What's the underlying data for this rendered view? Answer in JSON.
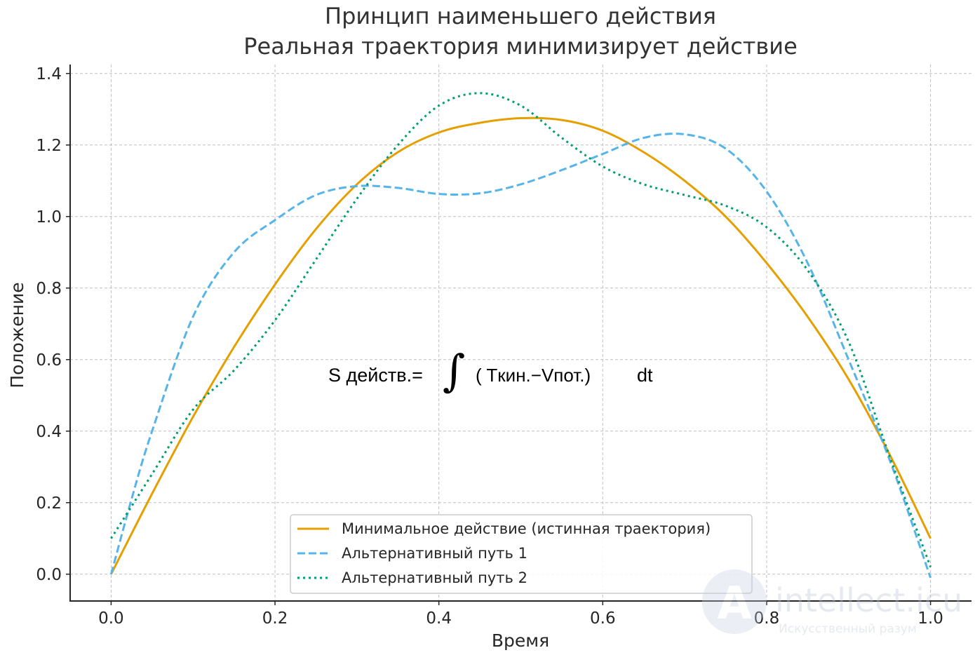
{
  "chart_data": {
    "type": "line",
    "title_line1": "Принцип наименьшего действия",
    "title_line2": "Реальная траектория минимизирует действие",
    "xlabel": "Время",
    "ylabel": "Положение",
    "xlim": [
      -0.05,
      1.05
    ],
    "ylim": [
      -0.075,
      1.425
    ],
    "xticks": [
      "0.0",
      "0.2",
      "0.4",
      "0.6",
      "0.8",
      "1.0"
    ],
    "yticks": [
      "0.0",
      "0.2",
      "0.4",
      "0.6",
      "0.8",
      "1.0",
      "1.2",
      "1.4"
    ],
    "grid": true,
    "legend_position": "lower center",
    "annotation": {
      "prefix": "S действ.=",
      "integral": "∫",
      "body": "( Tкин.−Vпот.)",
      "dt": "dt"
    },
    "series": [
      {
        "name": "Минимальное действие (истинная траектория)",
        "color": "#e69f00",
        "style": "solid",
        "points": [
          [
            0,
            0
          ],
          [
            0.05,
            0.225
          ],
          [
            0.1,
            0.44
          ],
          [
            0.15,
            0.635
          ],
          [
            0.2,
            0.81
          ],
          [
            0.25,
            0.965
          ],
          [
            0.3,
            1.09
          ],
          [
            0.35,
            1.18
          ],
          [
            0.4,
            1.235
          ],
          [
            0.45,
            1.262
          ],
          [
            0.5,
            1.275
          ],
          [
            0.55,
            1.27
          ],
          [
            0.6,
            1.24
          ],
          [
            0.65,
            1.18
          ],
          [
            0.7,
            1.1
          ],
          [
            0.75,
            1.0
          ],
          [
            0.8,
            0.87
          ],
          [
            0.85,
            0.72
          ],
          [
            0.9,
            0.545
          ],
          [
            0.95,
            0.335
          ],
          [
            1.0,
            0.1
          ]
        ]
      },
      {
        "name": "Альтернативный путь 1",
        "color": "#56b4e9",
        "style": "dashed",
        "points": [
          [
            0,
            0
          ],
          [
            0.025,
            0.21
          ],
          [
            0.05,
            0.4
          ],
          [
            0.1,
            0.72
          ],
          [
            0.15,
            0.9
          ],
          [
            0.2,
            0.99
          ],
          [
            0.25,
            1.06
          ],
          [
            0.3,
            1.085
          ],
          [
            0.35,
            1.08
          ],
          [
            0.4,
            1.063
          ],
          [
            0.45,
            1.065
          ],
          [
            0.5,
            1.09
          ],
          [
            0.55,
            1.13
          ],
          [
            0.6,
            1.175
          ],
          [
            0.65,
            1.22
          ],
          [
            0.7,
            1.23
          ],
          [
            0.75,
            1.19
          ],
          [
            0.8,
            1.07
          ],
          [
            0.85,
            0.87
          ],
          [
            0.9,
            0.6
          ],
          [
            0.95,
            0.32
          ],
          [
            1.0,
            -0.01
          ]
        ]
      },
      {
        "name": "Альтернативный путь 2",
        "color": "#009e73",
        "style": "dotted",
        "points": [
          [
            0,
            0.1
          ],
          [
            0.05,
            0.28
          ],
          [
            0.1,
            0.46
          ],
          [
            0.15,
            0.57
          ],
          [
            0.2,
            0.71
          ],
          [
            0.25,
            0.88
          ],
          [
            0.3,
            1.05
          ],
          [
            0.35,
            1.2
          ],
          [
            0.4,
            1.31
          ],
          [
            0.45,
            1.345
          ],
          [
            0.5,
            1.31
          ],
          [
            0.55,
            1.22
          ],
          [
            0.6,
            1.14
          ],
          [
            0.65,
            1.09
          ],
          [
            0.7,
            1.06
          ],
          [
            0.75,
            1.03
          ],
          [
            0.8,
            0.97
          ],
          [
            0.85,
            0.85
          ],
          [
            0.9,
            0.65
          ],
          [
            0.95,
            0.33
          ],
          [
            1.0,
            0.02
          ]
        ]
      }
    ]
  },
  "watermark": {
    "letter": "A",
    "name": "intellect.icu",
    "tagline": "Искусственный разум"
  }
}
